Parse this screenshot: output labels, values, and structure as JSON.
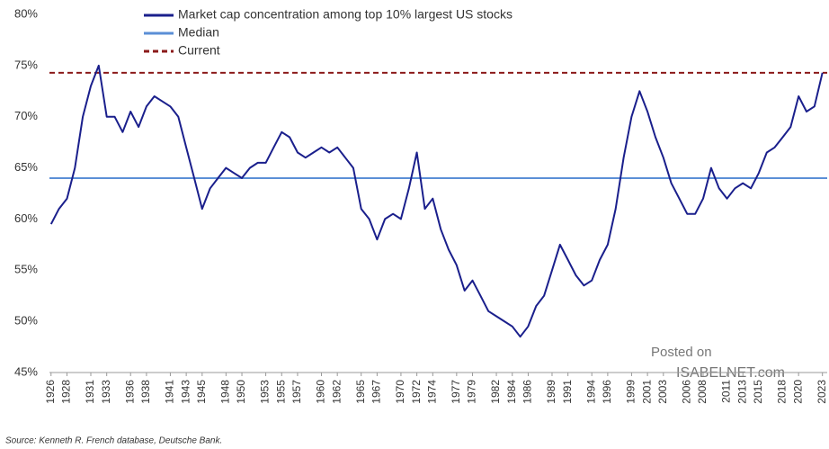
{
  "chart_data": {
    "type": "line",
    "x": [
      1926,
      1927,
      1928,
      1929,
      1930,
      1931,
      1932,
      1933,
      1934,
      1935,
      1936,
      1937,
      1938,
      1939,
      1940,
      1941,
      1942,
      1943,
      1944,
      1945,
      1946,
      1947,
      1948,
      1949,
      1950,
      1951,
      1952,
      1953,
      1954,
      1955,
      1956,
      1957,
      1958,
      1959,
      1960,
      1961,
      1962,
      1963,
      1964,
      1965,
      1966,
      1967,
      1968,
      1969,
      1970,
      1971,
      1972,
      1973,
      1974,
      1975,
      1976,
      1977,
      1978,
      1979,
      1980,
      1981,
      1982,
      1983,
      1984,
      1985,
      1986,
      1987,
      1988,
      1989,
      1990,
      1991,
      1992,
      1993,
      1994,
      1995,
      1996,
      1997,
      1998,
      1999,
      2000,
      2001,
      2002,
      2003,
      2004,
      2005,
      2006,
      2007,
      2008,
      2009,
      2010,
      2011,
      2012,
      2013,
      2014,
      2015,
      2016,
      2017,
      2018,
      2019,
      2020,
      2021,
      2022,
      2023
    ],
    "series": [
      {
        "name": "Market cap concentration among top 10% largest US stocks",
        "color": "#1a1f8c",
        "values": [
          59.5,
          61,
          62,
          65,
          70,
          73,
          75,
          70,
          70,
          68.5,
          70.5,
          69,
          71,
          72,
          71.5,
          71,
          70,
          67,
          64,
          61,
          63,
          64,
          65,
          64.5,
          64,
          65,
          65.5,
          65.5,
          67,
          68.5,
          68,
          66.5,
          66,
          66.5,
          67,
          66.5,
          67,
          66,
          65,
          61,
          60,
          58,
          60,
          60.5,
          60,
          63,
          66.5,
          61,
          62,
          59,
          57,
          55.5,
          53,
          54,
          52.5,
          51,
          50.5,
          50,
          49.5,
          48.5,
          49.5,
          51.5,
          52.5,
          55,
          57.5,
          56,
          54.5,
          53.5,
          54,
          56,
          57.5,
          61,
          66,
          70,
          72.5,
          70.5,
          68,
          66,
          63.5,
          62,
          60.5,
          60.5,
          62,
          65,
          63,
          62,
          63,
          63.5,
          63,
          64.5,
          66.5,
          67,
          68,
          69,
          72,
          70.5,
          71,
          74.3
        ]
      }
    ],
    "reference_lines": [
      {
        "name": "Median",
        "value": 64,
        "color": "#5b8fd6",
        "dashed": false
      },
      {
        "name": "Current",
        "value": 74.3,
        "color": "#8b1a1a",
        "dashed": true
      }
    ],
    "xlim": [
      1925.8,
      2023.6
    ],
    "xticks": [
      1926,
      1928,
      1931,
      1933,
      1936,
      1938,
      1941,
      1943,
      1945,
      1948,
      1950,
      1953,
      1955,
      1957,
      1960,
      1962,
      1965,
      1967,
      1970,
      1972,
      1974,
      1977,
      1979,
      1982,
      1984,
      1986,
      1989,
      1991,
      1994,
      1996,
      1999,
      2001,
      2003,
      2006,
      2008,
      2011,
      2013,
      2015,
      2018,
      2020,
      2023
    ],
    "ylim": [
      45,
      80
    ],
    "yticks": [
      {
        "value": 45,
        "label": "45%"
      },
      {
        "value": 50,
        "label": "50%"
      },
      {
        "value": 55,
        "label": "55%"
      },
      {
        "value": 60,
        "label": "60%"
      },
      {
        "value": 65,
        "label": "65%"
      },
      {
        "value": 70,
        "label": "70%"
      },
      {
        "value": 75,
        "label": "75%"
      },
      {
        "value": 80,
        "label": "80%"
      }
    ],
    "source": "Source: Kenneth R. French database, Deutsche Bank.",
    "watermark": [
      "Posted on",
      "ISABELNET.com"
    ]
  }
}
